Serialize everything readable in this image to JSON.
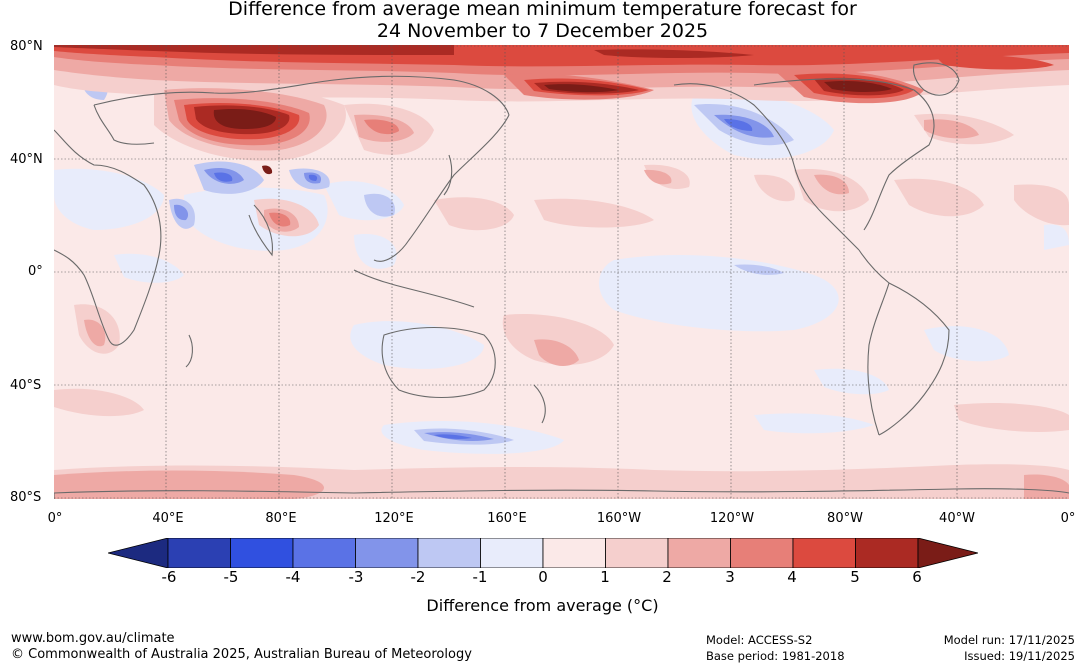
{
  "title": {
    "line1": "Difference from average mean minimum temperature forecast for",
    "line2": "24 November to 7 December 2025"
  },
  "map": {
    "lat_labels": [
      "80°N",
      "40°N",
      "0°",
      "40°S",
      "80°S"
    ],
    "lon_labels": [
      "0°",
      "40°E",
      "80°E",
      "120°E",
      "160°E",
      "160°W",
      "120°W",
      "80°W",
      "40°W",
      "0°"
    ]
  },
  "colorbar": {
    "colors": [
      "#1c2a80",
      "#2b40b3",
      "#3050e0",
      "#5a72e6",
      "#8294ea",
      "#bec8f3",
      "#e8ecfb",
      "#fbe9e8",
      "#f5cfcd",
      "#eea9a5",
      "#e77f78",
      "#dc4a3f",
      "#ab2a23",
      "#7a1c17"
    ],
    "ticks": [
      "-6",
      "-5",
      "-4",
      "-3",
      "-2",
      "-1",
      "0",
      "1",
      "2",
      "3",
      "4",
      "5",
      "6"
    ],
    "label": "Difference from average (°C)"
  },
  "footer": {
    "website": "www.bom.gov.au/climate",
    "copyright": "© Commonwealth of Australia 2025, Australian Bureau of Meteorology",
    "model": "Model: ACCESS-S2",
    "base_period": "Base period: 1981-2018",
    "model_run": "Model run: 17/11/2025",
    "issued": "Issued: 19/11/2025"
  }
}
